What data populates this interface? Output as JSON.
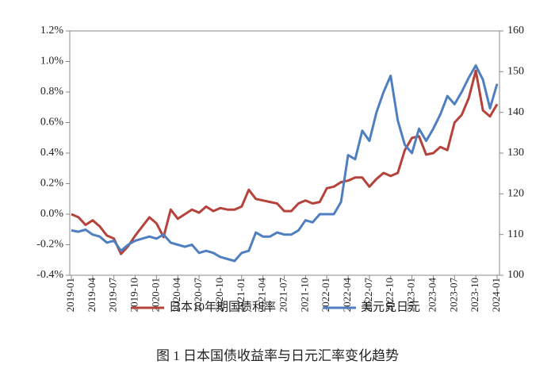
{
  "chart_data": {
    "type": "line",
    "caption": "图 1  日本国债收益率与日元汇率变化趋势",
    "categories": [
      "2019-01",
      null,
      null,
      "2019-04",
      null,
      null,
      "2019-07",
      null,
      null,
      "2019-10",
      null,
      null,
      "2020-01",
      null,
      null,
      "2020-04",
      null,
      null,
      "2020-07",
      null,
      null,
      "2020-10",
      null,
      null,
      "2021-01",
      null,
      null,
      "2021-04",
      null,
      null,
      "2021-07",
      null,
      null,
      "2021-10",
      null,
      null,
      "2022-01",
      null,
      null,
      "2022-04",
      null,
      null,
      "2022-07",
      null,
      null,
      "2022-10",
      null,
      null,
      "2023-01",
      null,
      null,
      "2023-04",
      null,
      null,
      "2023-07",
      null,
      null,
      "2023-10",
      null,
      null,
      "2024-01"
    ],
    "series": [
      {
        "name": "日本10年期国债利率",
        "color": "#b5423b",
        "axis": "y",
        "values": [
          0.0,
          -0.02,
          -0.07,
          -0.04,
          -0.08,
          -0.14,
          -0.16,
          -0.26,
          -0.21,
          -0.14,
          -0.08,
          -0.02,
          -0.06,
          -0.15,
          0.03,
          -0.03,
          0.0,
          0.03,
          0.01,
          0.05,
          0.02,
          0.04,
          0.03,
          0.03,
          0.05,
          0.16,
          0.1,
          0.09,
          0.08,
          0.07,
          0.02,
          0.02,
          0.07,
          0.09,
          0.07,
          0.08,
          0.17,
          0.18,
          0.21,
          0.22,
          0.24,
          0.24,
          0.18,
          0.23,
          0.27,
          0.25,
          0.27,
          0.42,
          0.5,
          0.51,
          0.39,
          0.4,
          0.44,
          0.42,
          0.6,
          0.65,
          0.76,
          0.94,
          0.68,
          0.64,
          0.72
        ]
      },
      {
        "name": "美元兑日元",
        "color": "#4f7fc0",
        "axis": "y2",
        "values": [
          111,
          110.7,
          111.2,
          110,
          109.5,
          108,
          108.5,
          106,
          107.5,
          108.5,
          109,
          109.5,
          109,
          110,
          108,
          107.5,
          107,
          107.5,
          105.5,
          106,
          105.5,
          104.5,
          104,
          103.5,
          105.5,
          106,
          110.5,
          109.5,
          109.5,
          110.5,
          110,
          110,
          111,
          113.5,
          113,
          115,
          115,
          115,
          118,
          129.5,
          128.5,
          135.5,
          133,
          140,
          145,
          149,
          138,
          132,
          130,
          136,
          133,
          136,
          139.5,
          144,
          142,
          145,
          148.5,
          151.5,
          148,
          141,
          147
        ]
      }
    ],
    "ylim": [
      -0.4,
      1.2
    ],
    "yticks": [
      {
        "value": -0.4,
        "label": "-0.4%"
      },
      {
        "value": -0.2,
        "label": "-0.2%"
      },
      {
        "value": 0,
        "label": "0.0%"
      },
      {
        "value": 0.2,
        "label": "0.2%"
      },
      {
        "value": 0.4,
        "label": "0.4%"
      },
      {
        "value": 0.6,
        "label": "0.6%"
      },
      {
        "value": 0.8,
        "label": "0.8%"
      },
      {
        "value": 1.0,
        "label": "1.0%"
      },
      {
        "value": 1.2,
        "label": "1.2%"
      }
    ],
    "y2lim": [
      100,
      160
    ],
    "y2ticks": [
      100,
      110,
      120,
      130,
      140,
      150,
      160
    ],
    "legend": "bottom"
  }
}
